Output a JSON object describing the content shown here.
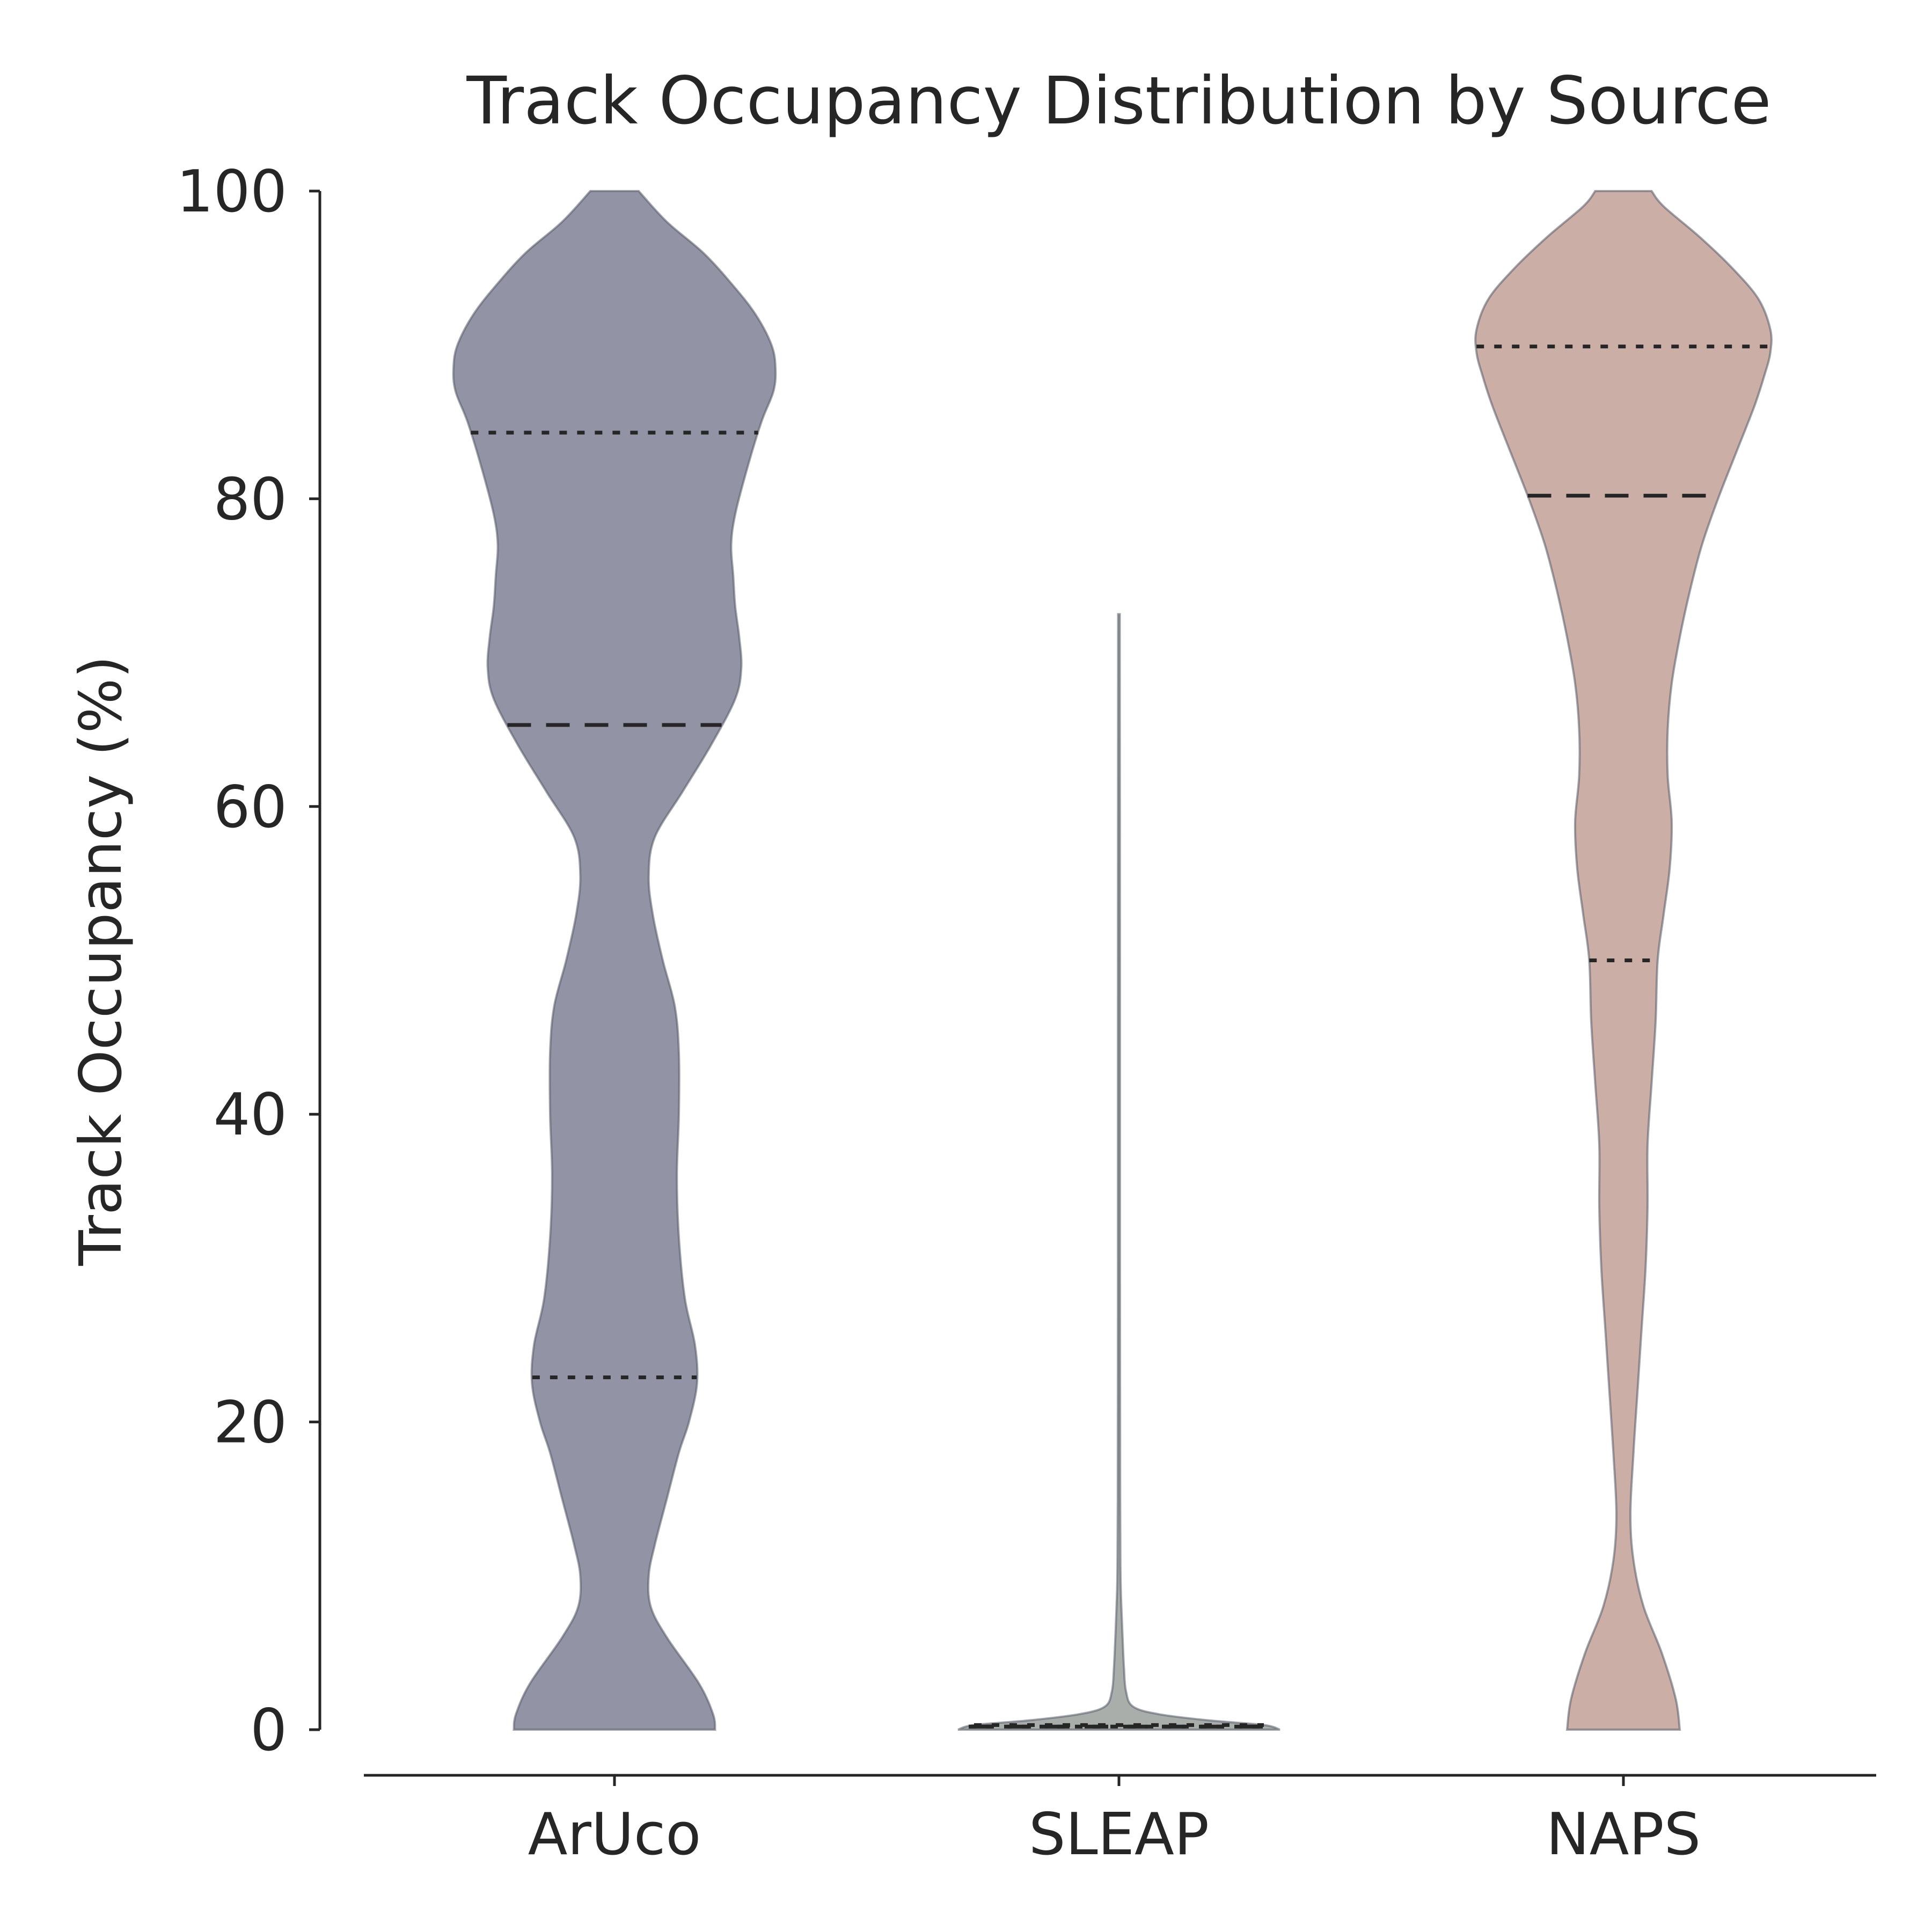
{
  "chart_data": {
    "type": "violin",
    "title": "Track Occupancy Distribution by Source",
    "ylabel": "Track Occupancy (%)",
    "xlabel": "",
    "ylim": [
      0,
      100
    ],
    "yticks": [
      "0",
      "20",
      "40",
      "60",
      "80",
      "100"
    ],
    "categories": [
      "ArUco",
      "SLEAP",
      "NAPS"
    ],
    "grid": false,
    "inner": "quartiles",
    "violins": [
      {
        "category": "ArUco",
        "color": "#9293a5",
        "ymin": 0,
        "ymax": 100,
        "quartiles": {
          "q1": 22.9,
          "median": 65.3,
          "q3": 84.3
        },
        "density": [
          [
            0,
            0.5
          ],
          [
            1,
            0.49
          ],
          [
            3,
            0.42
          ],
          [
            6,
            0.26
          ],
          [
            8,
            0.18
          ],
          [
            10,
            0.17
          ],
          [
            12,
            0.2
          ],
          [
            15,
            0.26
          ],
          [
            18,
            0.32
          ],
          [
            20,
            0.37
          ],
          [
            22.5,
            0.41
          ],
          [
            25,
            0.4
          ],
          [
            28,
            0.35
          ],
          [
            32,
            0.32
          ],
          [
            36,
            0.31
          ],
          [
            40,
            0.32
          ],
          [
            44,
            0.32
          ],
          [
            47,
            0.3
          ],
          [
            50,
            0.24
          ],
          [
            53,
            0.19
          ],
          [
            55.5,
            0.17
          ],
          [
            58,
            0.2
          ],
          [
            61,
            0.34
          ],
          [
            64,
            0.48
          ],
          [
            67,
            0.6
          ],
          [
            69,
            0.63
          ],
          [
            71,
            0.62
          ],
          [
            73,
            0.6
          ],
          [
            75,
            0.59
          ],
          [
            77,
            0.58
          ],
          [
            79,
            0.6
          ],
          [
            82,
            0.66
          ],
          [
            85,
            0.73
          ],
          [
            87,
            0.79
          ],
          [
            88.5,
            0.8
          ],
          [
            90,
            0.78
          ],
          [
            92,
            0.7
          ],
          [
            94,
            0.58
          ],
          [
            96,
            0.44
          ],
          [
            98,
            0.26
          ],
          [
            100,
            0.12
          ]
        ]
      },
      {
        "category": "SLEAP",
        "color": "#a9aeab",
        "ymin": 0,
        "ymax": 72.5,
        "quartiles": {
          "q1": 0.2,
          "median": 0.2,
          "q3": 0.3
        },
        "density": [
          [
            0,
            0.8
          ],
          [
            0.3,
            0.72
          ],
          [
            0.6,
            0.45
          ],
          [
            1.0,
            0.2
          ],
          [
            1.5,
            0.07
          ],
          [
            2.5,
            0.035
          ],
          [
            4,
            0.025
          ],
          [
            6,
            0.018
          ],
          [
            8,
            0.012
          ],
          [
            10,
            0.008
          ],
          [
            15,
            0.006
          ],
          [
            30,
            0.005
          ],
          [
            50,
            0.005
          ],
          [
            72.5,
            0.004
          ]
        ]
      },
      {
        "category": "NAPS",
        "color": "#cbaea6",
        "ymin": 0,
        "ymax": 100,
        "quartiles": {
          "q1": 50.0,
          "median": 80.2,
          "q3": 89.9
        },
        "density": [
          [
            0,
            0.28
          ],
          [
            2,
            0.26
          ],
          [
            5,
            0.19
          ],
          [
            8,
            0.1
          ],
          [
            11,
            0.05
          ],
          [
            14,
            0.035
          ],
          [
            18,
            0.05
          ],
          [
            22,
            0.07
          ],
          [
            26,
            0.09
          ],
          [
            30,
            0.11
          ],
          [
            34,
            0.12
          ],
          [
            38,
            0.12
          ],
          [
            42,
            0.14
          ],
          [
            46,
            0.16
          ],
          [
            50,
            0.17
          ],
          [
            53,
            0.2
          ],
          [
            56,
            0.23
          ],
          [
            59,
            0.24
          ],
          [
            62,
            0.22
          ],
          [
            65,
            0.22
          ],
          [
            68,
            0.24
          ],
          [
            71,
            0.28
          ],
          [
            74,
            0.33
          ],
          [
            77,
            0.39
          ],
          [
            80,
            0.47
          ],
          [
            83,
            0.56
          ],
          [
            86,
            0.65
          ],
          [
            88,
            0.7
          ],
          [
            89.5,
            0.73
          ],
          [
            91,
            0.73
          ],
          [
            93,
            0.67
          ],
          [
            95,
            0.54
          ],
          [
            97,
            0.38
          ],
          [
            99,
            0.2
          ],
          [
            100,
            0.14
          ]
        ]
      }
    ]
  }
}
